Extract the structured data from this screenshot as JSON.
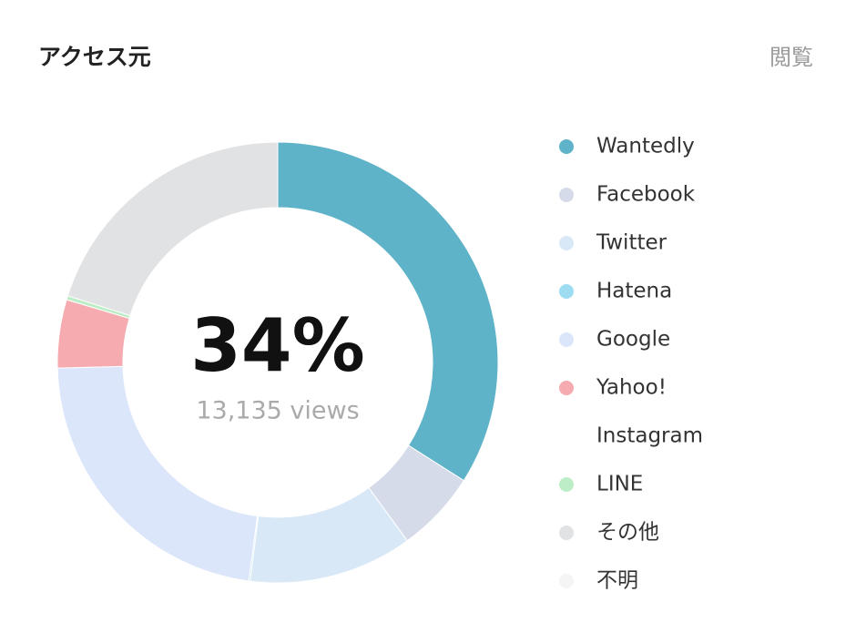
{
  "chart_data": {
    "type": "donut",
    "title": "アクセス元",
    "header_right": "閲覧",
    "center_label": "34%",
    "center_sublabel": "13,135 views",
    "categories": [
      "Wantedly",
      "Facebook",
      "Twitter",
      "Hatena",
      "Google",
      "Yahoo!",
      "Instagram",
      "LINE",
      "その他",
      "不明"
    ],
    "values": [
      34,
      6,
      12,
      0.1,
      22.5,
      5,
      0,
      0.3,
      20.1,
      0
    ],
    "colors": [
      "#5fb3c8",
      "#d5dbe9",
      "#d9e8f6",
      "#9edcf2",
      "#dce6fb",
      "#f5abb0",
      "#ffffff",
      "#bdedc6",
      "#e1e2e3",
      "#f5f5f6"
    ]
  }
}
